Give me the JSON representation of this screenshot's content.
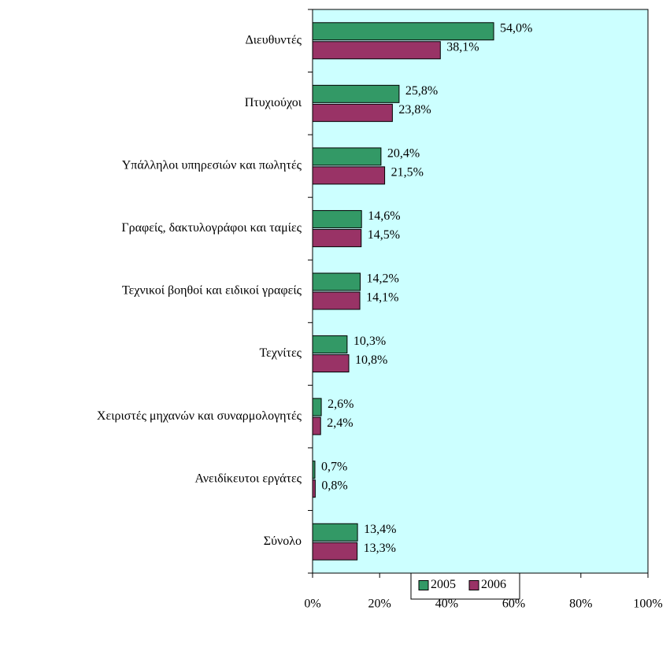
{
  "chart_data": {
    "type": "barh",
    "categories": [
      "Διευθυντές",
      "Πτυχιούχοι",
      "Υπάλληλοι υπηρεσιών και πωλητές",
      "Γραφείς, δακτυλογράφοι και ταμίες",
      "Τεχνικοί βοηθοί και ειδικοί γραφείς",
      "Τεχνίτες",
      "Χειριστές μηχανών και συναρμολογητές",
      "Ανειδίκευτοι εργάτες",
      "Σύνολο"
    ],
    "series": [
      {
        "name": "2005",
        "color": "#339966",
        "values": [
          54.0,
          25.8,
          20.4,
          14.6,
          14.2,
          10.3,
          2.6,
          0.7,
          13.4
        ],
        "value_labels": [
          "54,0%",
          "25,8%",
          "20,4%",
          "14,6%",
          "14,2%",
          "10,3%",
          "2,6%",
          "0,7%",
          "13,4%"
        ]
      },
      {
        "name": "2006",
        "color": "#993366",
        "values": [
          38.1,
          23.8,
          21.5,
          14.5,
          14.1,
          10.8,
          2.4,
          0.8,
          13.3
        ],
        "value_labels": [
          "38,1%",
          "23,8%",
          "21,5%",
          "14,5%",
          "14,1%",
          "10,8%",
          "2,4%",
          "0,8%",
          "13,3%"
        ]
      }
    ],
    "xlim": [
      0,
      100
    ],
    "xticks": [
      {
        "value": 0,
        "label": "0%"
      },
      {
        "value": 20,
        "label": "20%"
      },
      {
        "value": 40,
        "label": "40%"
      },
      {
        "value": 60,
        "label": "60%"
      },
      {
        "value": 80,
        "label": "80%"
      },
      {
        "value": 100,
        "label": "100%"
      }
    ],
    "plot_background": "#ccffff",
    "legend": "bottom"
  }
}
